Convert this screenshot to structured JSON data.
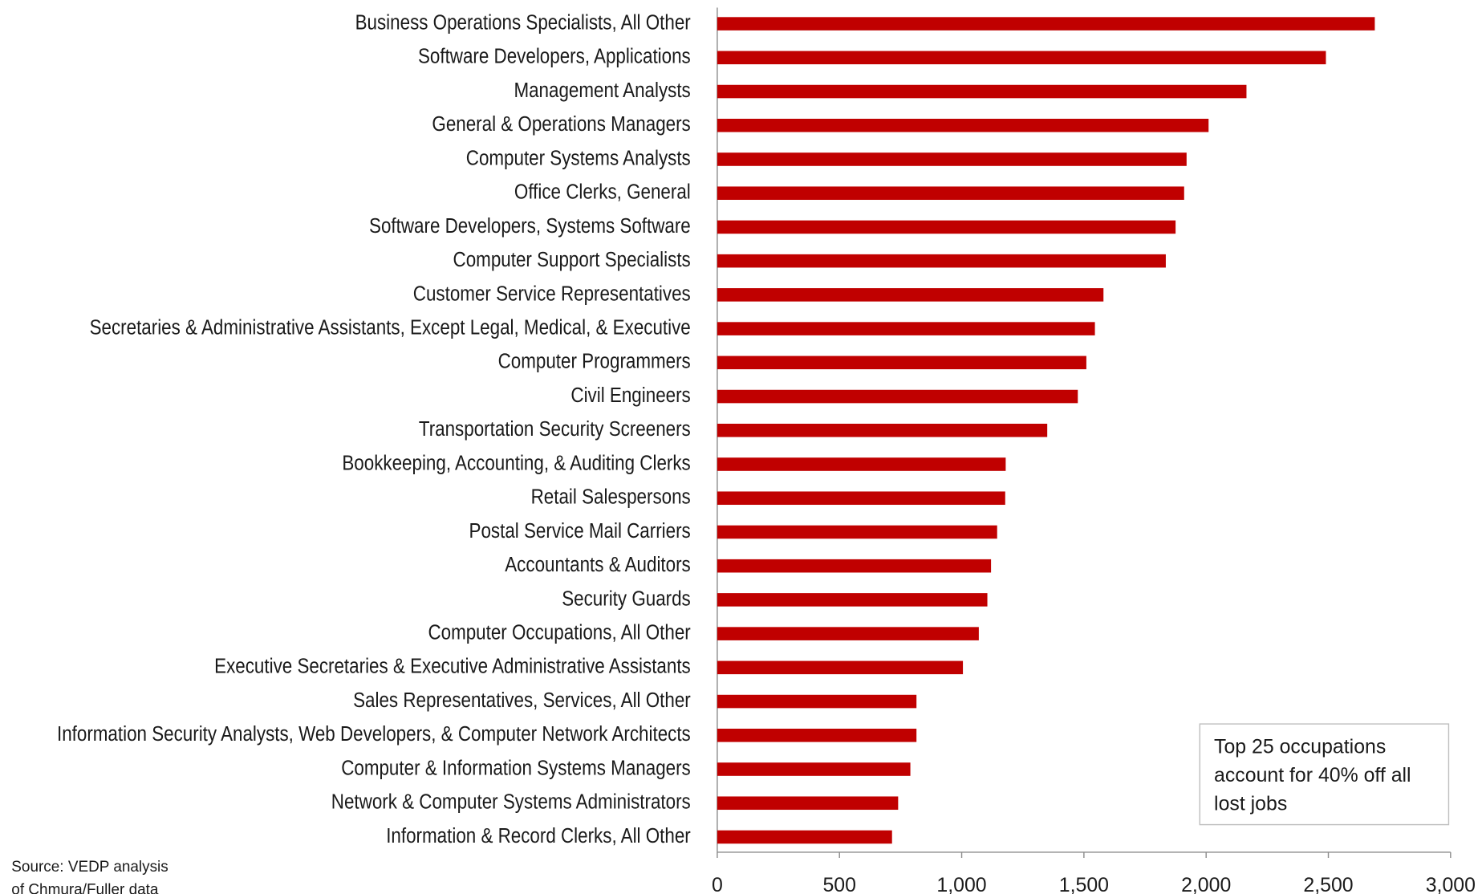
{
  "chart_data": {
    "type": "bar",
    "orientation": "horizontal",
    "categories": [
      "Business Operations Specialists, All Other",
      "Software Developers, Applications",
      "Management Analysts",
      "General & Operations Managers",
      "Computer Systems Analysts",
      "Office Clerks, General",
      "Software Developers, Systems Software",
      "Computer Support Specialists",
      "Customer Service Representatives",
      "Secretaries & Administrative Assistants, Except Legal, Medical, & Executive",
      "Computer Programmers",
      "Civil Engineers",
      "Transportation Security Screeners",
      "Bookkeeping, Accounting, & Auditing Clerks",
      "Retail Salespersons",
      "Postal Service Mail Carriers",
      "Accountants & Auditors",
      "Security Guards",
      "Computer Occupations, All Other",
      "Executive Secretaries & Executive Administrative Assistants",
      "Sales Representatives, Services, All Other",
      "Information Security Analysts, Web Developers, & Computer Network Architects",
      "Computer & Information Systems Managers",
      "Network & Computer Systems Administrators",
      "Information & Record Clerks, All Other"
    ],
    "values": [
      2690,
      2490,
      2165,
      2010,
      1920,
      1910,
      1875,
      1835,
      1580,
      1545,
      1510,
      1475,
      1350,
      1180,
      1178,
      1145,
      1120,
      1105,
      1070,
      1005,
      815,
      815,
      790,
      740,
      715
    ],
    "color": "#c00000",
    "xlim": [
      0,
      3000
    ],
    "xticks": [
      0,
      500,
      {
        "value": 1000,
        "label": "1,000"
      },
      {
        "value": 1500,
        "label": "1,500"
      },
      {
        "value": 2000,
        "label": "2,000"
      },
      {
        "value": 2500,
        "label": "2,500"
      },
      {
        "value": 3000,
        "label": "3,000"
      }
    ],
    "grid": false,
    "annotation": [
      "Top 25 occupations",
      "account for 40% off all",
      "lost jobs"
    ],
    "source": [
      "Source: VEDP analysis",
      "of Chmura/Fuller data"
    ]
  }
}
